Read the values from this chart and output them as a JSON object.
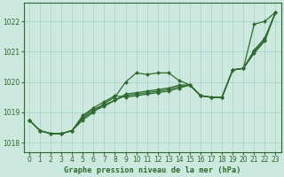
{
  "bg_color": "#cde8df",
  "grid_color": "#a8d5c8",
  "line_color": "#2d6a2d",
  "marker_color": "#2d6a2d",
  "xlabel": "Graphe pression niveau de la mer (hPa)",
  "xlim": [
    -0.5,
    23.5
  ],
  "ylim": [
    1017.7,
    1022.6
  ],
  "yticks": [
    1018,
    1019,
    1020,
    1021,
    1022
  ],
  "xticks": [
    0,
    1,
    2,
    3,
    4,
    5,
    6,
    7,
    8,
    9,
    10,
    11,
    12,
    13,
    14,
    15,
    16,
    17,
    18,
    19,
    20,
    21,
    22,
    23
  ],
  "lines": [
    [
      1018.75,
      1018.4,
      1018.3,
      1018.3,
      1018.4,
      1018.75,
      1019.0,
      1019.3,
      1019.5,
      1020.0,
      1020.3,
      1020.25,
      1020.3,
      1020.3,
      1020.05,
      1019.9,
      1019.55,
      1019.5,
      1019.5,
      1020.4,
      1020.45,
      1021.9,
      1022.0,
      1022.3
    ],
    [
      1018.75,
      1018.4,
      1018.3,
      1018.3,
      1018.4,
      1018.8,
      1019.05,
      1019.2,
      1019.4,
      1019.6,
      1019.65,
      1019.7,
      1019.75,
      1019.8,
      1019.9,
      1019.9,
      1019.55,
      1019.5,
      1019.5,
      1020.4,
      1020.45,
      1021.05,
      1021.45,
      1022.3
    ],
    [
      1018.75,
      1018.4,
      1018.3,
      1018.3,
      1018.4,
      1018.85,
      1019.1,
      1019.25,
      1019.4,
      1019.55,
      1019.6,
      1019.65,
      1019.7,
      1019.75,
      1019.85,
      1019.9,
      1019.55,
      1019.5,
      1019.5,
      1020.4,
      1020.45,
      1021.0,
      1021.4,
      1022.3
    ],
    [
      1018.75,
      1018.4,
      1018.3,
      1018.3,
      1018.4,
      1018.9,
      1019.15,
      1019.35,
      1019.55,
      1019.5,
      1019.55,
      1019.6,
      1019.65,
      1019.7,
      1019.8,
      1019.9,
      1019.55,
      1019.5,
      1019.5,
      1020.4,
      1020.45,
      1020.95,
      1021.35,
      1022.3
    ]
  ],
  "marker": "D",
  "markersize": 2.0,
  "linewidth": 0.9,
  "tick_labelsize": 5.5,
  "xlabel_fontsize": 6.2
}
